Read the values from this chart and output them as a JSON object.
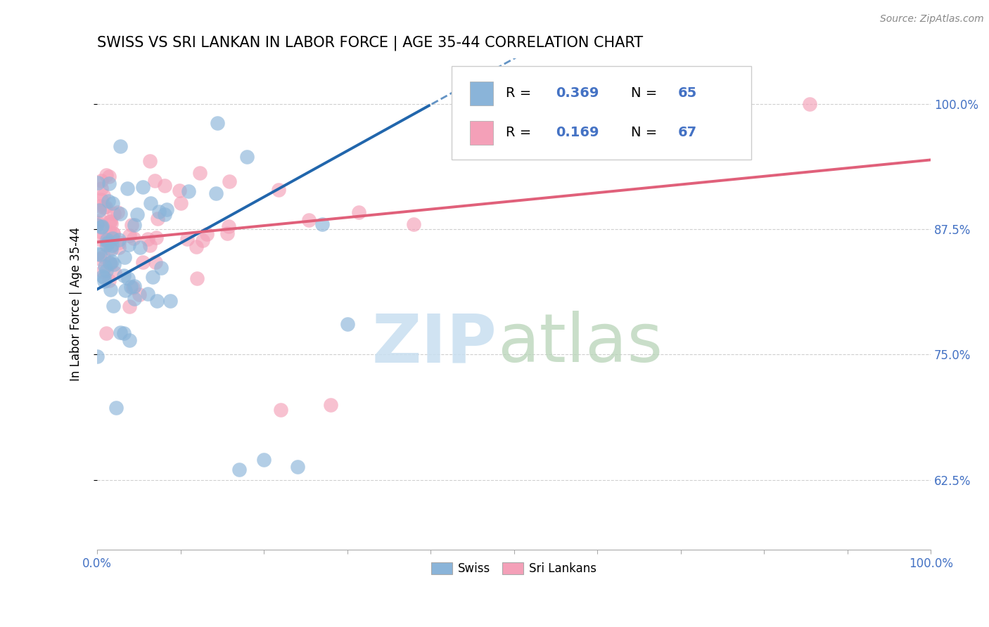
{
  "title": "SWISS VS SRI LANKAN IN LABOR FORCE | AGE 35-44 CORRELATION CHART",
  "source_text": "Source: ZipAtlas.com",
  "ylabel": "In Labor Force | Age 35-44",
  "xlim": [
    0.0,
    1.0
  ],
  "ylim": [
    0.555,
    1.045
  ],
  "ytick_labels": [
    "62.5%",
    "75.0%",
    "87.5%",
    "100.0%"
  ],
  "ytick_values": [
    0.625,
    0.75,
    0.875,
    1.0
  ],
  "legend_r_swiss": "0.369",
  "legend_n_swiss": "65",
  "legend_r_sri": "0.169",
  "legend_n_sri": "67",
  "swiss_color": "#8ab4d9",
  "srilanka_color": "#f4a0b8",
  "swiss_line_color": "#2166ac",
  "srilanka_line_color": "#e0607a",
  "watermark_zip_color": "#c8dff0",
  "watermark_atlas_color": "#b8d4b8",
  "background_color": "#ffffff",
  "grid_color": "#d0d0d0",
  "tick_color": "#4472C4",
  "title_fontsize": 15,
  "source_fontsize": 10,
  "tick_fontsize": 12,
  "ylabel_fontsize": 12,
  "legend_fontsize": 14
}
